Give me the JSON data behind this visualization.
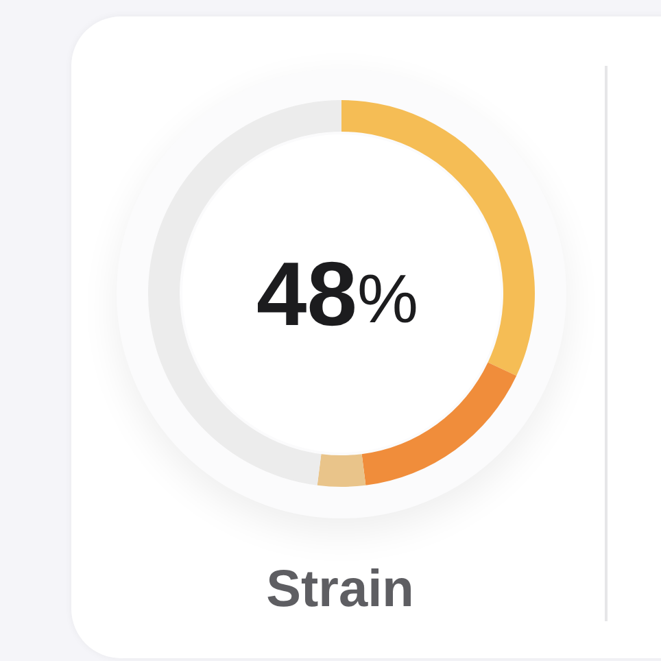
{
  "chart_data": {
    "type": "donut",
    "title": "Strain",
    "categories": [
      null,
      null,
      null,
      null
    ],
    "values": [
      32,
      16,
      4,
      48
    ],
    "colors": [
      "#f5bd55",
      "#f08d3b",
      "#e9c48a",
      "#ececec"
    ],
    "annotations": [
      "48%"
    ]
  }
}
